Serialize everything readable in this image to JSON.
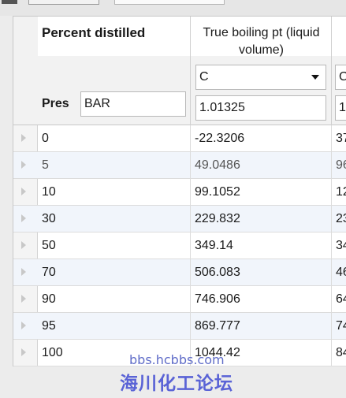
{
  "columns": {
    "percent": {
      "title": "Percent distilled"
    },
    "tbp": {
      "title": "True boiling pt (liquid volume)",
      "unit": "C",
      "pressure_value": "1.01325"
    },
    "next": {
      "unit_partial": "C",
      "pressure_partial": "1"
    }
  },
  "pressure": {
    "label": "Pres",
    "unit": "BAR"
  },
  "rows": [
    {
      "percent": "0",
      "tbp": "-22.3206",
      "next": "37"
    },
    {
      "percent": "5",
      "tbp": "49.0486",
      "next": "96"
    },
    {
      "percent": "10",
      "tbp": "99.1052",
      "next": "12"
    },
    {
      "percent": "30",
      "tbp": "229.832",
      "next": "23"
    },
    {
      "percent": "50",
      "tbp": "349.14",
      "next": "34"
    },
    {
      "percent": "70",
      "tbp": "506.083",
      "next": "46"
    },
    {
      "percent": "90",
      "tbp": "746.906",
      "next": "64"
    },
    {
      "percent": "95",
      "tbp": "869.777",
      "next": "74"
    },
    {
      "percent": "100",
      "tbp": "1044.42",
      "next": "84"
    }
  ],
  "watermark": {
    "url": "bbs.hcbbs.com",
    "name": "海川化工论坛"
  },
  "colors": {
    "alt_row": "#f1f5fb",
    "watermark": "#5a63d6"
  }
}
